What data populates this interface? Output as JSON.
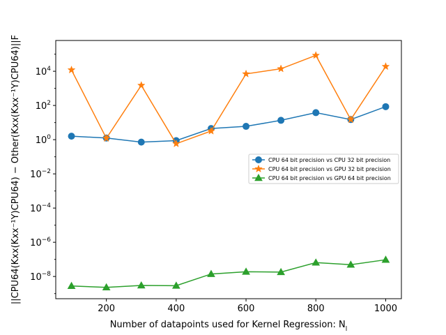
{
  "chart_data": {
    "type": "line",
    "title": "",
    "xlabel": "Number of datapoints used for Kernel Regression: N",
    "xlabel_sub": "l",
    "ylabel": "||CPU64(Kxx(Kxx⁻¹Y)CPU64) − Other(Kxx(Kxx⁻¹Y)CPU64)||F",
    "y_scale": "log",
    "xlim": [
      55,
      1045
    ],
    "ylim_log10": [
      -9.3,
      5.8
    ],
    "x_ticks": [
      200,
      400,
      600,
      800,
      1000
    ],
    "y_tick_exponents": [
      -8,
      -6,
      -4,
      -2,
      0,
      2,
      4
    ],
    "grid": false,
    "legend_position": "center-right",
    "x": [
      100,
      200,
      300,
      400,
      500,
      600,
      700,
      800,
      900,
      1000
    ],
    "series": [
      {
        "name": "CPU 64 bit precision vs CPU 32 bit precision",
        "color": "#1f77b4",
        "marker": "circle",
        "values": [
          1.6,
          1.25,
          0.72,
          0.88,
          4.5,
          6.0,
          13.5,
          38,
          15,
          85
        ]
      },
      {
        "name": "CPU 64 bit precision vs GPU 32 bit precision",
        "color": "#ff7f0e",
        "marker": "star",
        "values": [
          12000,
          1.2,
          1500,
          0.58,
          3.2,
          7000,
          14000,
          85000,
          15,
          19000
        ]
      },
      {
        "name": "CPU 64 bit precision vs GPU 64 bit precision",
        "color": "#2ca02c",
        "marker": "triangle",
        "values": [
          2.8e-09,
          2.3e-09,
          3e-09,
          2.9e-09,
          1.4e-08,
          1.9e-08,
          1.8e-08,
          6.5e-08,
          4.9e-08,
          9.5e-08
        ]
      }
    ]
  }
}
